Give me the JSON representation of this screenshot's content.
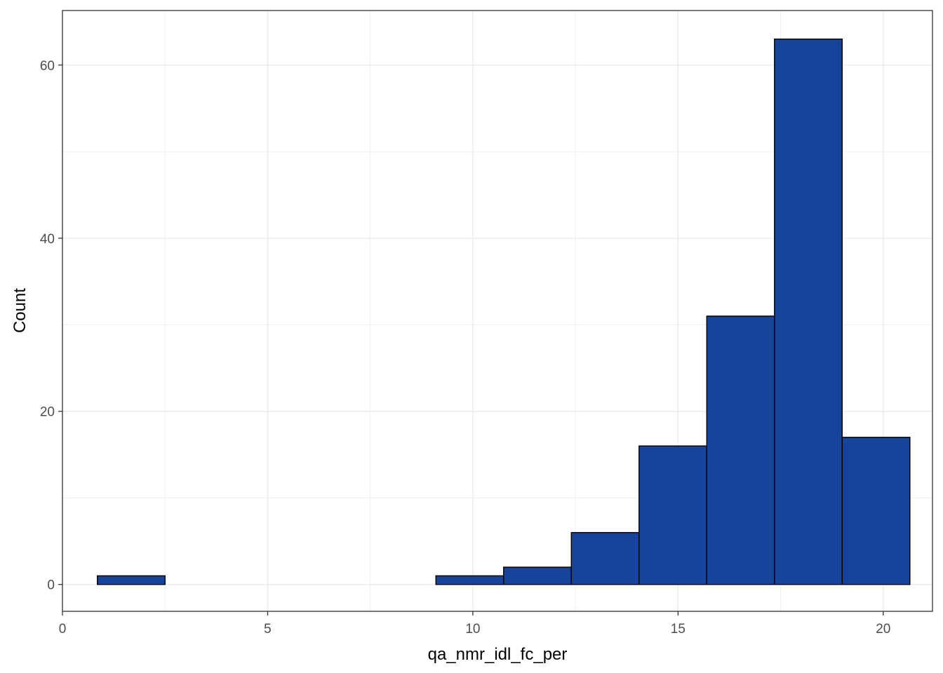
{
  "chart_data": {
    "type": "bar",
    "title": "",
    "xlabel": "qa_nmr_idl_fc_per",
    "ylabel": "Count",
    "xlim": [
      0,
      21.2
    ],
    "ylim": [
      -3.1,
      66.3
    ],
    "x_ticks": [
      0,
      5,
      10,
      15,
      20
    ],
    "y_ticks": [
      0,
      20,
      40,
      60
    ],
    "grid": true,
    "bins": [
      {
        "x0": 0.85,
        "x1": 2.5,
        "count": 1
      },
      {
        "x0": 2.5,
        "x1": 4.15,
        "count": 0
      },
      {
        "x0": 4.15,
        "x1": 5.8,
        "count": 0
      },
      {
        "x0": 5.8,
        "x1": 7.45,
        "count": 0
      },
      {
        "x0": 7.45,
        "x1": 9.1,
        "count": 0
      },
      {
        "x0": 9.1,
        "x1": 10.75,
        "count": 1
      },
      {
        "x0": 10.75,
        "x1": 12.4,
        "count": 2
      },
      {
        "x0": 12.4,
        "x1": 14.05,
        "count": 6
      },
      {
        "x0": 14.05,
        "x1": 15.7,
        "count": 16
      },
      {
        "x0": 15.7,
        "x1": 17.35,
        "count": 31
      },
      {
        "x0": 17.35,
        "x1": 19.0,
        "count": 63
      },
      {
        "x0": 19.0,
        "x1": 20.65,
        "count": 17
      }
    ],
    "colors": {
      "fill": "#17449a",
      "stroke": "#000000",
      "grid": "#ebebeb",
      "panel_border": "#333333"
    }
  }
}
